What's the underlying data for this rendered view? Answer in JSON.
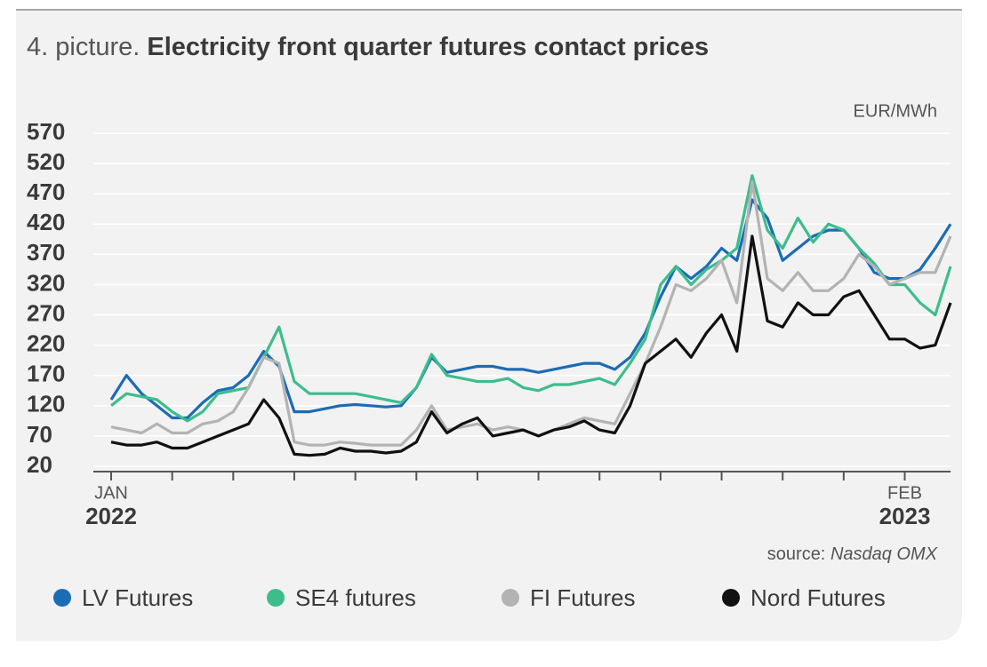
{
  "chart_data": {
    "type": "line",
    "title_prefix": "4. picture.",
    "title": "Electricity front quarter futures contact prices",
    "unit_label": "EUR/MWh",
    "source_label": "source:",
    "source": "Nasdaq OMX",
    "categories": [
      "JAN",
      null,
      null,
      null,
      null,
      null,
      null,
      null,
      null,
      null,
      null,
      null,
      null,
      null,
      null,
      null,
      null,
      null,
      null,
      null,
      null,
      null,
      null,
      null,
      null,
      null,
      null,
      null,
      null,
      null,
      null,
      null,
      null,
      null,
      null,
      null,
      null,
      null,
      null,
      null,
      null,
      null,
      null,
      null,
      null,
      null,
      null,
      null,
      null,
      null,
      null,
      null,
      "FEB",
      null,
      null,
      null
    ],
    "category_years": [
      "2022",
      null,
      null,
      null,
      null,
      null,
      null,
      null,
      null,
      null,
      null,
      null,
      null,
      null,
      null,
      null,
      null,
      null,
      null,
      null,
      null,
      null,
      null,
      null,
      null,
      null,
      null,
      null,
      null,
      null,
      null,
      null,
      null,
      null,
      null,
      null,
      null,
      null,
      null,
      null,
      null,
      null,
      null,
      null,
      null,
      null,
      null,
      null,
      null,
      null,
      null,
      null,
      "2023",
      null,
      null,
      null
    ],
    "ylim": [
      20,
      570
    ],
    "yticks": [
      20,
      70,
      120,
      170,
      220,
      270,
      320,
      370,
      420,
      470,
      520,
      570
    ],
    "grid": true,
    "series": [
      {
        "name": "LV Futures",
        "color": "#1b6cb4",
        "values": [
          130,
          170,
          140,
          120,
          100,
          100,
          125,
          145,
          150,
          170,
          210,
          185,
          110,
          110,
          115,
          120,
          122,
          120,
          118,
          120,
          150,
          200,
          175,
          180,
          185,
          185,
          180,
          180,
          175,
          180,
          185,
          190,
          190,
          180,
          200,
          240,
          300,
          350,
          330,
          350,
          380,
          360,
          460,
          430,
          360,
          380,
          400,
          410,
          410,
          380,
          340,
          330,
          330,
          345,
          380,
          420
        ]
      },
      {
        "name": "SE4 futures",
        "color": "#3dbd8c",
        "values": [
          120,
          140,
          135,
          130,
          110,
          95,
          110,
          140,
          145,
          150,
          200,
          250,
          160,
          140,
          140,
          140,
          140,
          135,
          130,
          125,
          150,
          205,
          170,
          165,
          160,
          160,
          165,
          150,
          145,
          155,
          155,
          160,
          165,
          155,
          190,
          230,
          320,
          350,
          320,
          345,
          360,
          380,
          500,
          410,
          380,
          430,
          390,
          420,
          410,
          380,
          355,
          320,
          320,
          290,
          270,
          350
        ]
      },
      {
        "name": "FI Futures",
        "color": "#b3b3b3",
        "values": [
          85,
          80,
          75,
          90,
          75,
          75,
          90,
          95,
          110,
          150,
          200,
          190,
          60,
          55,
          55,
          60,
          58,
          55,
          55,
          55,
          80,
          120,
          80,
          85,
          90,
          80,
          85,
          80,
          70,
          80,
          90,
          100,
          95,
          90,
          140,
          190,
          250,
          320,
          310,
          330,
          360,
          290,
          490,
          330,
          310,
          340,
          310,
          310,
          330,
          370,
          350,
          320,
          330,
          340,
          340,
          400
        ]
      },
      {
        "name": "Nord Futures",
        "color": "#111111",
        "values": [
          60,
          55,
          55,
          60,
          50,
          50,
          60,
          70,
          80,
          90,
          130,
          100,
          40,
          38,
          40,
          50,
          45,
          45,
          42,
          45,
          60,
          110,
          75,
          90,
          100,
          70,
          75,
          80,
          70,
          80,
          85,
          95,
          80,
          75,
          120,
          190,
          210,
          230,
          200,
          240,
          270,
          210,
          400,
          260,
          250,
          290,
          270,
          270,
          300,
          310,
          270,
          230,
          230,
          215,
          220,
          290
        ]
      }
    ]
  }
}
